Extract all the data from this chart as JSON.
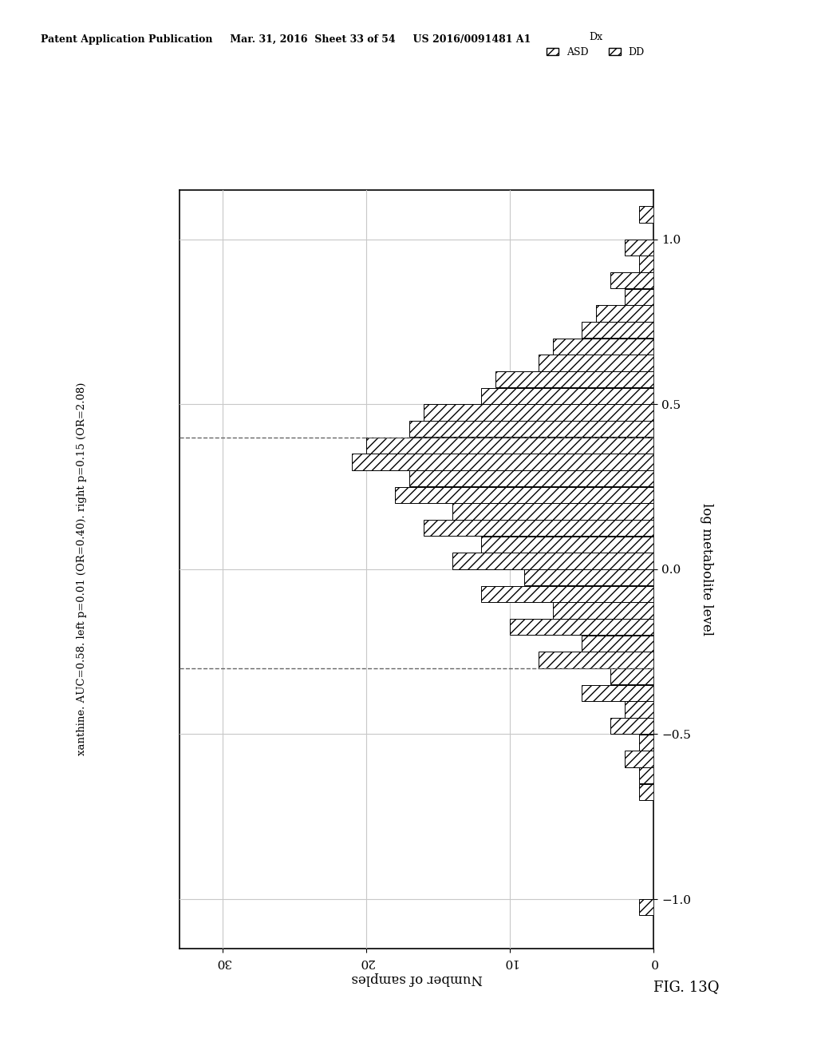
{
  "title": "xanthine. AUC=0.58. left p=0.01 (OR=0.40). right p=0.15 (OR=2.08)",
  "ylabel": "log metabolite level",
  "xlabel": "Number of samples",
  "fig_label": "FIG. 13Q",
  "patent_header": "Patent Application Publication     Mar. 31, 2016  Sheet 33 of 54     US 2016/0091481 A1",
  "legend_title": "Dx",
  "legend_labels": [
    "ASD",
    "DD"
  ],
  "dashed_lines": [
    0.4,
    -0.3
  ],
  "ylim": [
    -1.15,
    1.15
  ],
  "xlim": [
    0,
    33
  ],
  "yticks": [
    -1.0,
    -0.5,
    0.0,
    0.5,
    1.0
  ],
  "xticks": [
    0,
    10,
    20,
    30
  ],
  "bins_center": [
    -1.05,
    -0.95,
    -0.85,
    -0.75,
    -0.65,
    -0.55,
    -0.45,
    -0.35,
    -0.25,
    -0.15,
    -0.05,
    0.05,
    0.15,
    0.25,
    0.35,
    0.45,
    0.55,
    0.65,
    0.75,
    0.85,
    0.95,
    1.05
  ],
  "asd_counts": [
    1,
    0,
    0,
    0,
    1,
    1,
    2,
    3,
    5,
    7,
    9,
    12,
    14,
    17,
    20,
    16,
    11,
    7,
    4,
    3,
    2,
    1
  ],
  "dd_counts": [
    0,
    0,
    0,
    0,
    1,
    2,
    3,
    5,
    8,
    10,
    12,
    14,
    16,
    18,
    21,
    17,
    12,
    8,
    5,
    2,
    1,
    0
  ],
  "background_color": "#ffffff",
  "grid_color": "#c8c8c8",
  "bin_width": 0.1
}
